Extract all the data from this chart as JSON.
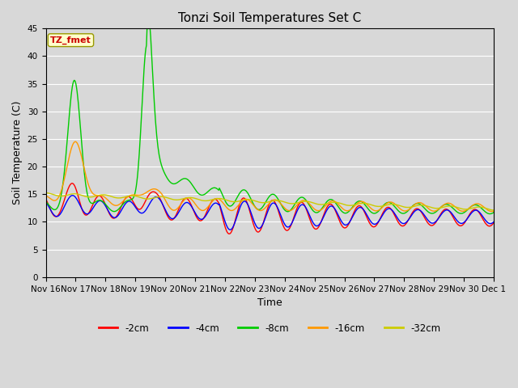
{
  "title": "Tonzi Soil Temperatures Set C",
  "xlabel": "Time",
  "ylabel": "Soil Temperature (C)",
  "ylim": [
    0,
    45
  ],
  "yticks": [
    0,
    5,
    10,
    15,
    20,
    25,
    30,
    35,
    40,
    45
  ],
  "xtick_labels": [
    "Nov 16",
    "Nov 17",
    "Nov 18",
    "Nov 19",
    "Nov 20",
    "Nov 21",
    "Nov 22",
    "Nov 23",
    "Nov 24",
    "Nov 25",
    "Nov 26",
    "Nov 27",
    "Nov 28",
    "Nov 29",
    "Nov 30",
    "Dec 1"
  ],
  "legend_labels": [
    "-2cm",
    "-4cm",
    "-8cm",
    "-16cm",
    "-32cm"
  ],
  "legend_colors": [
    "#ff0000",
    "#0000ff",
    "#00cc00",
    "#ff9900",
    "#cccc00"
  ],
  "annotation_text": "TZ_fmet",
  "annotation_color": "#cc0000",
  "annotation_bg": "#ffffcc",
  "fig_facecolor": "#d8d8d8",
  "plot_bg": "#d8d8d8",
  "grid_color": "#ffffff",
  "title_fontsize": 11,
  "axis_fontsize": 9,
  "tick_fontsize": 7.5,
  "n_days": 15.5,
  "figwidth": 6.4,
  "figheight": 4.8,
  "dpi": 100
}
